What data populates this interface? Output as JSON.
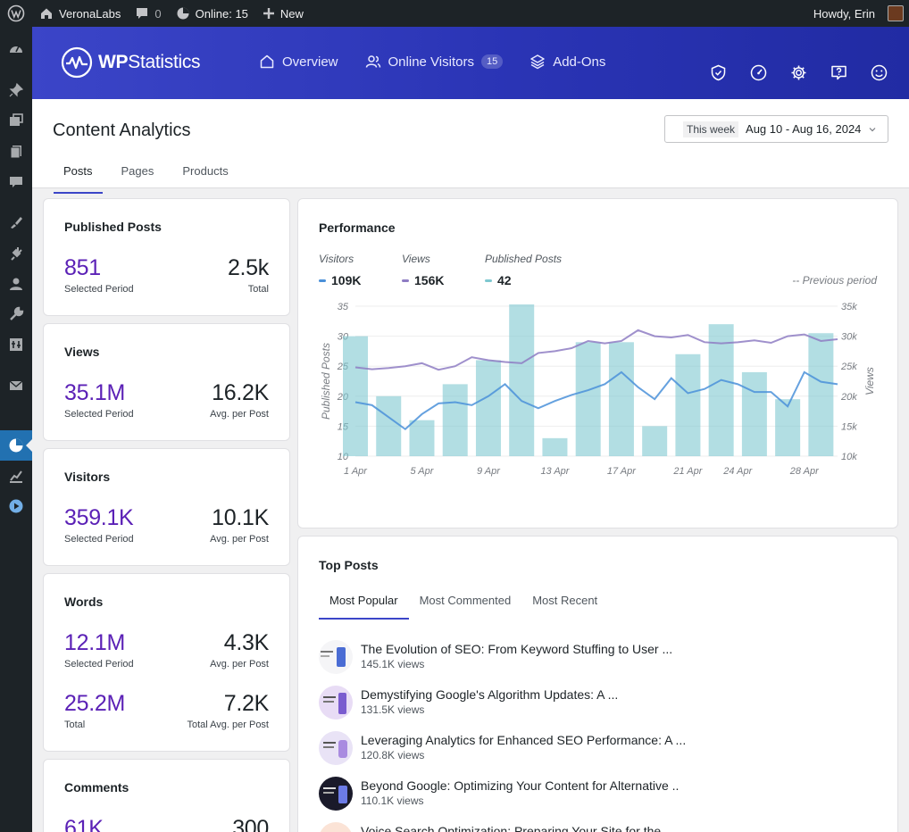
{
  "adminbar": {
    "site_name": "VeronaLabs",
    "comments_count": "0",
    "online_label": "Online: 15",
    "new_label": "New",
    "howdy": "Howdy, Erin"
  },
  "sidemenu": {
    "items": [
      "dashboard-icon",
      "pin-icon",
      "media-icon",
      "pages-icon",
      "comments-icon",
      "appearance-icon",
      "plugins-icon",
      "users-icon",
      "tools-icon",
      "settings-icon",
      "mail-icon",
      "statistics-icon",
      "analytics-icon",
      "play-icon"
    ],
    "active": "statistics-icon"
  },
  "header": {
    "logo_prefix": "WP",
    "logo_suffix": "Statistics",
    "nav": {
      "overview": "Overview",
      "online_visitors": "Online Visitors",
      "online_count": "15",
      "addons": "Add-Ons"
    },
    "icons": [
      "shield-check-icon",
      "gauge-icon",
      "gear-icon",
      "help-icon",
      "smiley-icon"
    ]
  },
  "page": {
    "title": "Content Analytics",
    "tabs": [
      "Posts",
      "Pages",
      "Products"
    ],
    "active_tab": "Posts",
    "date_label": "This week",
    "date_range": "Aug 10 - Aug 16, 2024"
  },
  "stats": {
    "published": {
      "title": "Published Posts",
      "left_value": "851",
      "left_label": "Selected Period",
      "right_value": "2.5k",
      "right_label": "Total"
    },
    "views": {
      "title": "Views",
      "left_value": "35.1M",
      "left_label": "Selected Period",
      "right_value": "16.2K",
      "right_label": "Avg. per Post"
    },
    "visitors": {
      "title": "Visitors",
      "left_value": "359.1K",
      "left_label": "Selected Period",
      "right_value": "10.1K",
      "right_label": "Avg. per Post"
    },
    "words": {
      "title": "Words",
      "left_value": "12.1M",
      "left_label": "Selected Period",
      "right_value": "4.3K",
      "right_label": "Avg. per Post",
      "left_value2": "25.2M",
      "left_label2": "Total",
      "right_value2": "7.2K",
      "right_label2": "Total Avg. per Post"
    },
    "comments": {
      "title": "Comments",
      "left_value": "61K",
      "right_value": "300"
    }
  },
  "performance": {
    "title": "Performance",
    "legend": {
      "visitors_name": "Visitors",
      "visitors_value": "109K",
      "views_name": "Views",
      "views_value": "156K",
      "posts_name": "Published Posts",
      "posts_value": "42"
    },
    "previous_period": "-- Previous period",
    "colors": {
      "visitors": "#4a90d9",
      "views": "#8e7cc3",
      "posts": "#7ec8d0"
    }
  },
  "chart_data": {
    "type": "bar",
    "xlabel": "",
    "ylabel": "Published Posts",
    "y2label": "Views",
    "x_ticks": [
      "1 Apr",
      "5 Apr",
      "9 Apr",
      "13 Apr",
      "17 Apr",
      "21 Apr",
      "24 Apr",
      "28 Apr"
    ],
    "y_ticks": [
      10,
      15,
      20,
      25,
      30,
      35
    ],
    "y2_ticks": [
      "10k",
      "15k",
      "20k",
      "25k",
      "30k",
      "35k"
    ],
    "ylim": [
      10,
      35
    ],
    "y2lim": [
      10000,
      35000
    ],
    "grid": true,
    "x": [
      1,
      2,
      3,
      4,
      5,
      6,
      7,
      8,
      9,
      10,
      11,
      12,
      13,
      14,
      15,
      16,
      17,
      18,
      19,
      20,
      21,
      22,
      23,
      24,
      25,
      26,
      27,
      28,
      29,
      30
    ],
    "series": [
      {
        "name": "Published Posts",
        "type": "bar",
        "points": [
          [
            1,
            30
          ],
          [
            3,
            20
          ],
          [
            5,
            16
          ],
          [
            7,
            22
          ],
          [
            9,
            26
          ],
          [
            11,
            36
          ],
          [
            13,
            13
          ],
          [
            15,
            29
          ],
          [
            17,
            29
          ],
          [
            19,
            15
          ],
          [
            21,
            27
          ],
          [
            23,
            32
          ],
          [
            25,
            24
          ],
          [
            27,
            19.5
          ],
          [
            29,
            30.5
          ]
        ]
      },
      {
        "name": "Views",
        "type": "line",
        "axis": "right",
        "values": [
          24800,
          24500,
          24700,
          25000,
          25500,
          24400,
          25000,
          26500,
          26000,
          25700,
          25500,
          27200,
          27500,
          28000,
          29200,
          28800,
          29200,
          31000,
          30000,
          29800,
          30200,
          29000,
          28800,
          29000,
          29300,
          28900,
          30000,
          30300,
          29200,
          29500
        ]
      },
      {
        "name": "Visitors",
        "type": "line",
        "axis": "right",
        "values": [
          19000,
          18500,
          16500,
          14500,
          17000,
          18800,
          19000,
          18500,
          20000,
          22000,
          19200,
          18000,
          19200,
          20200,
          21000,
          22000,
          24000,
          21500,
          19500,
          23000,
          20500,
          21200,
          22700,
          22000,
          20700,
          20700,
          18300,
          24000,
          22400,
          22000
        ]
      }
    ]
  },
  "top_posts": {
    "title": "Top Posts",
    "tabs": [
      "Most Popular",
      "Most Commented",
      "Most Recent"
    ],
    "active_tab": "Most Popular",
    "items": [
      {
        "title": "The Evolution of SEO: From Keyword Stuffing to User ...",
        "views": "145.1K views"
      },
      {
        "title": "Demystifying Google's Algorithm Updates: A ...",
        "views": "131.5K views"
      },
      {
        "title": "Leveraging Analytics for Enhanced SEO Performance: A ...",
        "views": "120.8K views"
      },
      {
        "title": "Beyond Google: Optimizing Your Content for Alternative ..",
        "views": "110.1K views"
      },
      {
        "title": "Voice Search Optimization: Preparing Your Site for the ...",
        "views": ""
      }
    ]
  }
}
